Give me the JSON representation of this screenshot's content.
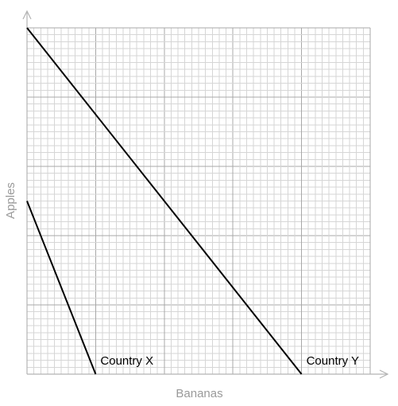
{
  "chart_data": {
    "type": "line",
    "xlabel": "Bananas",
    "ylabel": "Apples",
    "xlim": [
      0,
      50
    ],
    "ylim": [
      0,
      50
    ],
    "grid": true,
    "tick_labels": false,
    "series": [
      {
        "name": "Country X",
        "x": [
          0,
          10
        ],
        "y": [
          25,
          0
        ]
      },
      {
        "name": "Country Y",
        "x": [
          0,
          40
        ],
        "y": [
          50,
          0
        ]
      }
    ],
    "colors": {
      "line": "#000000",
      "grid_minor": "#d6d6d6",
      "grid_major": "#a8a8a8",
      "axis": "#b3b3b3",
      "axis_title": "#9a9a9a"
    }
  }
}
